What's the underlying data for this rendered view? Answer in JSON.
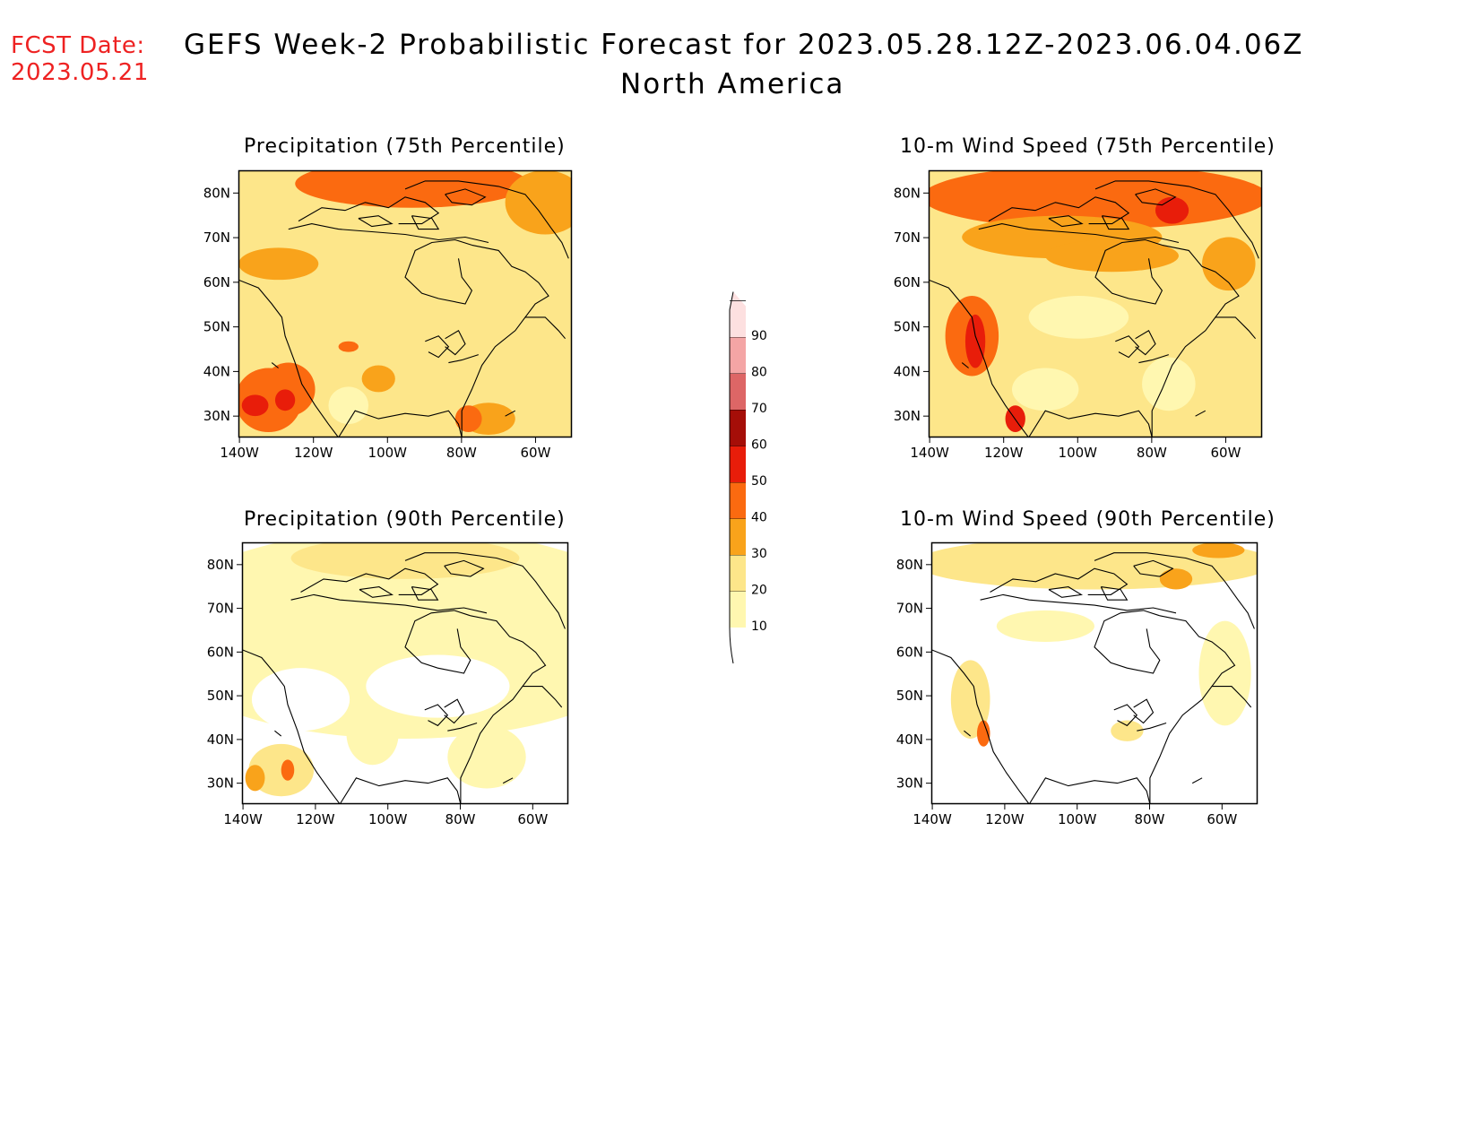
{
  "header": {
    "fcst_label": "FCST Date:",
    "fcst_date": "2023.05.21",
    "title": "GEFS Week-2 Probabilistic Forecast for 2023.05.28.12Z-2023.06.04.06Z",
    "subtitle": "North America"
  },
  "panels": [
    {
      "id": "precip75",
      "title": "Precipitation (75th Percentile)"
    },
    {
      "id": "wind75",
      "title": "10-m Wind Speed (75th Percentile)"
    },
    {
      "id": "precip90",
      "title": "Precipitation (90th Percentile)"
    },
    {
      "id": "wind90",
      "title": "10-m Wind Speed (90th Percentile)"
    }
  ],
  "axes": {
    "lat_labels": [
      "80N",
      "70N",
      "60N",
      "50N",
      "40N",
      "30N"
    ],
    "lon_labels": [
      "140W",
      "120W",
      "100W",
      "80W",
      "60W"
    ]
  },
  "colorbar": {
    "levels": [
      "10",
      "20",
      "30",
      "40",
      "50",
      "60",
      "70",
      "80",
      "90"
    ],
    "colors": [
      "#fff7b0",
      "#fde68a",
      "#f9a31b",
      "#fb6a10",
      "#e81d0a",
      "#a50e08",
      "#dd6666",
      "#f4a5a5",
      "#fde0e0"
    ]
  },
  "colors": {
    "fcst_text": "#ee2222",
    "level_10": "#fff7b0",
    "level_20": "#fde68a",
    "level_30": "#f9a31b",
    "level_40": "#fb6a10",
    "level_50": "#e81d0a",
    "level_60": "#a50e08"
  }
}
